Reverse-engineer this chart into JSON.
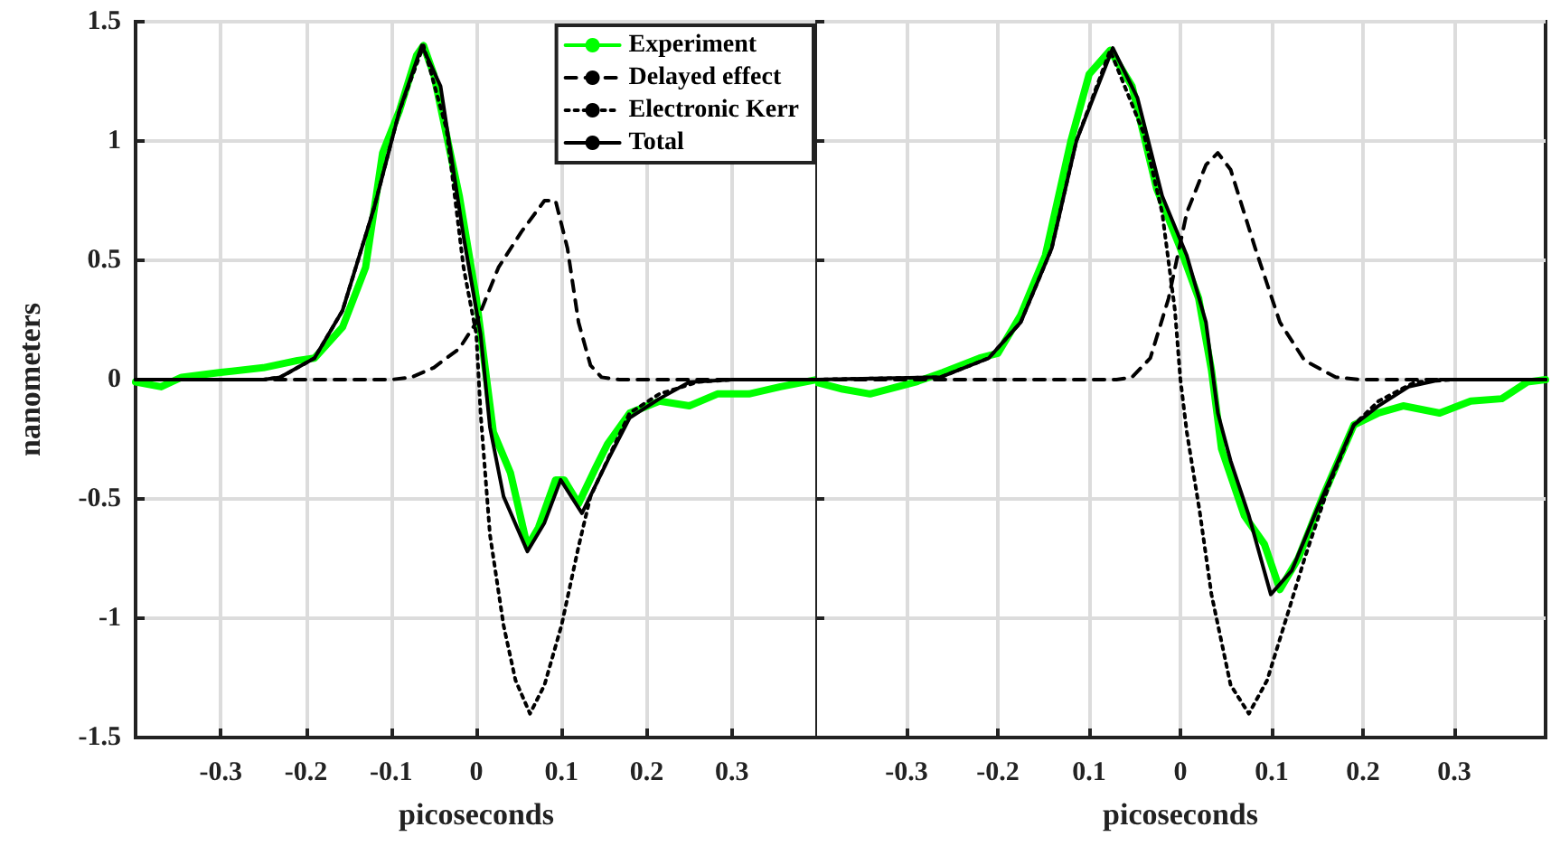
{
  "chart_data": [
    {
      "type": "line",
      "xlabel": "picoseconds",
      "ylabel": "nanometers",
      "xlim": [
        -0.4,
        0.4
      ],
      "ylim": [
        -1.5,
        1.5
      ],
      "xticks": [
        -0.3,
        -0.2,
        -0.1,
        0,
        0.1,
        0.2,
        0.3
      ],
      "yticks": [
        -1.5,
        -1,
        -0.5,
        0,
        0.5,
        1,
        1.5
      ],
      "grid": true,
      "legend": "top right",
      "series": [
        {
          "name": "Experiment",
          "color": "#00ff00",
          "line_style": "solid",
          "x": [
            -0.4,
            -0.37,
            -0.346,
            -0.3,
            -0.25,
            -0.21,
            -0.19,
            -0.157,
            -0.13,
            -0.11,
            -0.09,
            -0.07,
            -0.062,
            -0.05,
            -0.02,
            0,
            0.02,
            0.04,
            0.06,
            0.073,
            0.093,
            0.103,
            0.12,
            0.14,
            0.154,
            0.18,
            0.215,
            0.25,
            0.283,
            0.32,
            0.357,
            0.4
          ],
          "values": [
            -0.01,
            -0.03,
            0.01,
            0.03,
            0.05,
            0.08,
            0.09,
            0.22,
            0.47,
            0.95,
            1.13,
            1.36,
            1.4,
            1.28,
            0.77,
            0.34,
            -0.22,
            -0.39,
            -0.7,
            -0.62,
            -0.42,
            -0.42,
            -0.52,
            -0.37,
            -0.27,
            -0.14,
            -0.09,
            -0.11,
            -0.06,
            -0.06,
            -0.03,
            0
          ]
        },
        {
          "name": "Delayed effect",
          "color": "#000000",
          "line_style": "dashed",
          "x": [
            -0.4,
            -0.1,
            -0.076,
            -0.05,
            -0.02,
            0,
            0.026,
            0.053,
            0.08,
            0.093,
            0.107,
            0.12,
            0.134,
            0.147,
            0.168,
            0.4
          ],
          "values": [
            0,
            0,
            0.01,
            0.05,
            0.13,
            0.24,
            0.47,
            0.62,
            0.75,
            0.75,
            0.55,
            0.24,
            0.06,
            0.01,
            0,
            0
          ]
        },
        {
          "name": "Electronic Kerr",
          "color": "#000000",
          "line_style": "dotted",
          "x": [
            -0.4,
            -0.25,
            -0.23,
            -0.19,
            -0.157,
            -0.12,
            -0.09,
            -0.062,
            -0.035,
            -0.015,
            0,
            0.005,
            0.016,
            0.032,
            0.046,
            0.063,
            0.08,
            0.1,
            0.12,
            0.134,
            0.16,
            0.18,
            0.215,
            0.26,
            0.3,
            0.4
          ],
          "values": [
            0,
            0,
            0.01,
            0.09,
            0.29,
            0.72,
            1.13,
            1.4,
            1.05,
            0.47,
            0.19,
            -0.14,
            -0.65,
            -1.03,
            -1.26,
            -1.4,
            -1.28,
            -1.03,
            -0.7,
            -0.49,
            -0.29,
            -0.14,
            -0.06,
            -0.01,
            0,
            0
          ]
        },
        {
          "name": "Total",
          "color": "#000000",
          "line_style": "solid",
          "x": [
            -0.4,
            -0.25,
            -0.23,
            -0.19,
            -0.157,
            -0.12,
            -0.09,
            -0.064,
            -0.042,
            -0.015,
            0.005,
            0.016,
            0.032,
            0.06,
            0.08,
            0.099,
            0.124,
            0.154,
            0.18,
            0.215,
            0.25,
            0.3,
            0.4
          ],
          "values": [
            0,
            0,
            0.01,
            0.09,
            0.29,
            0.72,
            1.13,
            1.4,
            1.23,
            0.6,
            0.19,
            -0.2,
            -0.49,
            -0.72,
            -0.6,
            -0.42,
            -0.56,
            -0.34,
            -0.16,
            -0.08,
            -0.01,
            0,
            0
          ]
        }
      ]
    },
    {
      "type": "line",
      "xlabel": "picoseconds",
      "xlim": [
        -0.4,
        0.4
      ],
      "ylim": [
        -1.5,
        1.5
      ],
      "xticks": [
        -0.3,
        -0.2,
        {
          "value": -0.1,
          "label": "0.1"
        },
        0,
        0.1,
        0.2,
        0.3
      ],
      "yticks": [
        -1.5,
        -1,
        -0.5,
        0,
        0.5,
        1,
        1.5
      ],
      "grid": true,
      "tick_labels": "x",
      "series": [
        {
          "color": "#00ff00",
          "line_style": "solid",
          "x": [
            -0.4,
            -0.37,
            -0.34,
            -0.32,
            -0.29,
            -0.26,
            -0.22,
            -0.2,
            -0.175,
            -0.148,
            -0.12,
            -0.1,
            -0.077,
            -0.053,
            -0.026,
            0,
            0.02,
            0.034,
            0.045,
            0.07,
            0.092,
            0.109,
            0.129,
            0.156,
            0.19,
            0.217,
            0.244,
            0.284,
            0.318,
            0.352,
            0.38,
            0.4
          ],
          "values": [
            -0.01,
            -0.04,
            -0.06,
            -0.04,
            -0.01,
            0.03,
            0.09,
            0.11,
            0.27,
            0.52,
            1,
            1.28,
            1.38,
            1.23,
            0.8,
            0.55,
            0.34,
            0.04,
            -0.29,
            -0.57,
            -0.69,
            -0.88,
            -0.75,
            -0.49,
            -0.19,
            -0.14,
            -0.11,
            -0.14,
            -0.09,
            -0.08,
            -0.01,
            0
          ]
        },
        {
          "color": "#000000",
          "line_style": "dashed",
          "x": [
            -0.4,
            -0.07,
            -0.053,
            -0.033,
            -0.013,
            0.007,
            0.028,
            0.041,
            0.055,
            0.082,
            0.109,
            0.136,
            0.17,
            0.197,
            0.4
          ],
          "values": [
            0,
            0,
            0.01,
            0.09,
            0.34,
            0.7,
            0.9,
            0.95,
            0.88,
            0.55,
            0.24,
            0.08,
            0.01,
            0,
            0
          ]
        },
        {
          "color": "#000000",
          "line_style": "dotted",
          "x": [
            -0.4,
            -0.263,
            -0.21,
            -0.175,
            -0.141,
            -0.114,
            -0.077,
            -0.04,
            -0.02,
            -0.006,
            0,
            0.007,
            0.021,
            0.034,
            0.055,
            0.075,
            0.095,
            0.116,
            0.136,
            0.163,
            0.19,
            0.217,
            0.257,
            0.3,
            0.4
          ],
          "values": [
            0,
            0.01,
            0.09,
            0.24,
            0.55,
            1,
            1.38,
            1.03,
            0.7,
            0.29,
            0,
            -0.22,
            -0.55,
            -0.9,
            -1.28,
            -1.4,
            -1.26,
            -1,
            -0.75,
            -0.44,
            -0.19,
            -0.09,
            -0.01,
            0,
            0
          ]
        },
        {
          "color": "#000000",
          "line_style": "solid",
          "x": [
            -0.4,
            -0.263,
            -0.21,
            -0.175,
            -0.141,
            -0.114,
            -0.074,
            -0.047,
            -0.02,
            0.007,
            0.028,
            0.041,
            0.055,
            0.075,
            0.099,
            0.122,
            0.149,
            0.19,
            0.217,
            0.25,
            0.285,
            0.4
          ],
          "values": [
            0,
            0.01,
            0.09,
            0.24,
            0.55,
            1,
            1.39,
            1.18,
            0.77,
            0.52,
            0.24,
            -0.14,
            -0.34,
            -0.57,
            -0.9,
            -0.8,
            -0.55,
            -0.19,
            -0.11,
            -0.03,
            0,
            0
          ]
        }
      ]
    }
  ]
}
